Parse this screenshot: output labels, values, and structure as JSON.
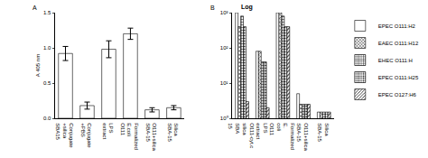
{
  "chart_data": [
    {
      "type": "bar",
      "annotations": [
        {
          "text": "A"
        }
      ],
      "y_label": "A 405 nm",
      "categories": [
        "Conjugate +silica SBA15",
        "Conjugate +PBS",
        "LPS extract",
        "Formalized E.coli O111",
        "O111+silica SBA-15",
        "Silica SBA-15"
      ],
      "values": [
        0.92,
        0.18,
        0.98,
        1.2,
        0.12,
        0.15
      ],
      "errors": [
        0.1,
        0.05,
        0.12,
        0.08,
        0.03,
        0.03
      ],
      "colors": [
        "#ffffff",
        "#ffffff",
        "#ffffff",
        "#ffffff",
        "#ffffff",
        "#ffffff"
      ],
      "ylim": [
        0,
        1.5
      ],
      "yticks": [
        {
          "value": 0,
          "label": "0.0"
        },
        0.5,
        {
          "value": 1,
          "label": "1.0"
        },
        1.5
      ],
      "grid": false
    },
    {
      "type": "bar",
      "title": "Log",
      "annotations": [
        {
          "text": "B"
        }
      ],
      "log": "y",
      "legend": "right",
      "categories": [
        "O111-cyt.c silica SBA 15",
        "LPS extract",
        "Formalized E. coli O111",
        "O111+silica SBA-15",
        "Silica SBA-15"
      ],
      "series": [
        {
          "name": "EPEC O111:H2",
          "color": "#ffffff",
          "values": [
            1000,
            80,
            1000,
            5,
            1.5
          ]
        },
        {
          "name": "EAEC O111:H12",
          "color": "#ffffff",
          "values": [
            400,
            80,
            1000,
            2.5,
            1.5
          ]
        },
        {
          "name": "EHEC O111:H",
          "color": "#ffffff",
          "values": [
            800,
            40,
            800,
            2.5,
            1.5
          ]
        },
        {
          "name": "EPEC O111:H25",
          "color": "#ffffff",
          "values": [
            400,
            40,
            400,
            2.5,
            1.5
          ]
        },
        {
          "name": "EPEC O127:H6",
          "color": "#ffffff",
          "values": [
            3,
            2,
            400,
            2.5,
            1.5
          ]
        }
      ],
      "ylim": [
        1,
        1000
      ],
      "yticks": [
        {
          "value": 1,
          "label": "10⁰"
        },
        {
          "value": 10,
          "label": "10¹"
        },
        {
          "value": 100,
          "label": "10²"
        },
        {
          "value": 1000,
          "label": "10³"
        }
      ],
      "grid": false
    }
  ]
}
